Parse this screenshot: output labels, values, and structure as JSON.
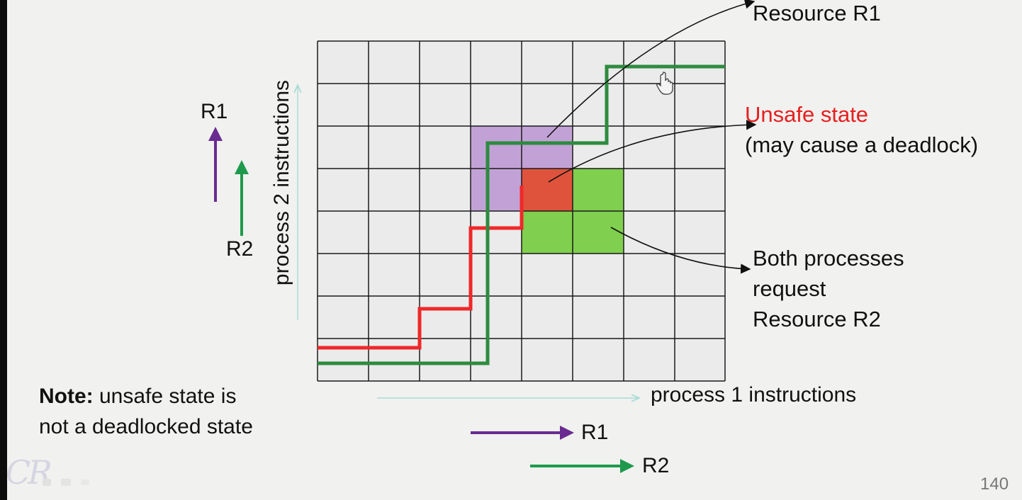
{
  "colors": {
    "r1": "#6a2c91",
    "r2": "#1f9a4d",
    "unsafe_text": "#e62020",
    "red_path": "#f0282a",
    "green_path": "#2e8b3f",
    "purple_region": "#c2a2d6",
    "red_region": "#df533c",
    "green_region": "#80cf4e",
    "grid_cell": "#ebebeb",
    "grid_line": "#1a1a1a",
    "axis_arrow": "#a9dcd6"
  },
  "annotations": {
    "top_resource": "Resource R1",
    "unsafe_title": "Unsafe state",
    "unsafe_sub": "(may cause a  deadlock)",
    "both_lines": [
      "Both processes",
      "request",
      "Resource R2"
    ]
  },
  "axes": {
    "y_label": "process 2 instructions",
    "x_label": "process 1 instructions"
  },
  "legend": {
    "vertical_r1": "R1",
    "vertical_r2": "R2",
    "horizontal_r1": "R1",
    "horizontal_r2": "R2"
  },
  "note": {
    "bold": "Note:",
    "rest_line1": " unsafe state is",
    "line2": "not a deadlocked state"
  },
  "page_number": "140",
  "watermark": "CR"
}
